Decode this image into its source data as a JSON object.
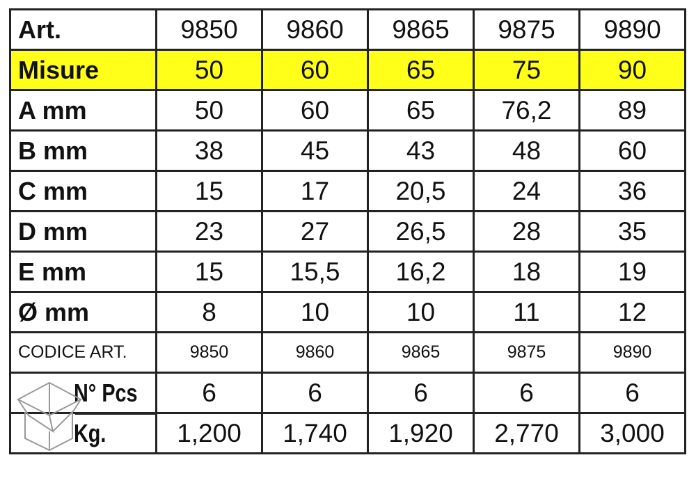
{
  "columns": [
    "9850",
    "9860",
    "9865",
    "9875",
    "9890"
  ],
  "header": {
    "label": "Art."
  },
  "rows": [
    {
      "label": "Misure",
      "values": [
        "50",
        "60",
        "65",
        "75",
        "90"
      ],
      "highlight": "#ffff1a"
    },
    {
      "label": "A mm",
      "values": [
        "50",
        "60",
        "65",
        "76,2",
        "89"
      ]
    },
    {
      "label": "B mm",
      "values": [
        "38",
        "45",
        "43",
        "48",
        "60"
      ]
    },
    {
      "label": "C mm",
      "values": [
        "15",
        "17",
        "20,5",
        "24",
        "36"
      ]
    },
    {
      "label": "D mm",
      "values": [
        "23",
        "27",
        "26,5",
        "28",
        "35"
      ]
    },
    {
      "label": "E mm",
      "values": [
        "15",
        "15,5",
        "16,2",
        "18",
        "19"
      ]
    },
    {
      "label": "Ø mm",
      "values": [
        "8",
        "10",
        "10",
        "11",
        "12"
      ]
    }
  ],
  "codice": {
    "label": "CODICE ART.",
    "values": [
      "9850",
      "9860",
      "9865",
      "9875",
      "9890"
    ]
  },
  "pcs": {
    "label": "N° Pcs",
    "values": [
      "6",
      "6",
      "6",
      "6",
      "6"
    ]
  },
  "kg": {
    "label": "Kg.",
    "values": [
      "1,200",
      "1,740",
      "1,920",
      "2,770",
      "3,000"
    ]
  },
  "icons": {
    "package": "open-box-icon"
  }
}
